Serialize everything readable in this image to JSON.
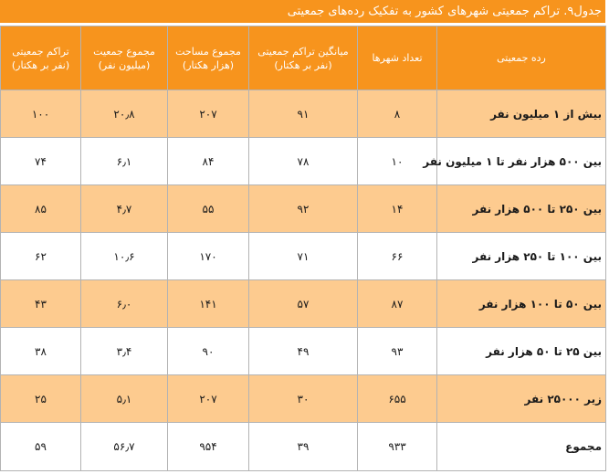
{
  "title": "جدول۹. تراکم جمعیتی شهرهای کشور به تفکیک رده‌های جمعیتی",
  "headers": {
    "category": [
      "رده جمعیتی"
    ],
    "city_count": [
      "تعداد شهرها"
    ],
    "avg_density": [
      "میانگین تراکم جمعیتی",
      "(نفر بر هکتار)"
    ],
    "total_area": [
      "مجموع مساحت",
      "(هزار هکتار)"
    ],
    "total_population": [
      "مجموع جمعیت",
      "(میلیون نفر)"
    ],
    "density": [
      "تراکم جمعیتی",
      "(نفر بر هکتار)"
    ]
  },
  "rows": [
    {
      "category": "بیش از ۱ میلیون نفر",
      "city_count": "۸",
      "avg_density": "۹۱",
      "total_area": "۲۰۷",
      "total_population": "۲۰٫۸",
      "density": "۱۰۰"
    },
    {
      "category": "بین ۵۰۰ هزار نفر تا ۱ میلیون نفر",
      "city_count": "۱۰",
      "avg_density": "۷۸",
      "total_area": "۸۴",
      "total_population": "۶٫۱",
      "density": "۷۴"
    },
    {
      "category": "بین ۲۵۰ تا ۵۰۰ هزار نفر",
      "city_count": "۱۴",
      "avg_density": "۹۲",
      "total_area": "۵۵",
      "total_population": "۴٫۷",
      "density": "۸۵"
    },
    {
      "category": "بین ۱۰۰ تا ۲۵۰ هزار نفر",
      "city_count": "۶۶",
      "avg_density": "۷۱",
      "total_area": "۱۷۰",
      "total_population": "۱۰٫۶",
      "density": "۶۲"
    },
    {
      "category": "بین ۵۰ تا ۱۰۰ هزار نفر",
      "city_count": "۸۷",
      "avg_density": "۵۷",
      "total_area": "۱۴۱",
      "total_population": "۶٫۰",
      "density": "۴۳"
    },
    {
      "category": "بین ۲۵ تا ۵۰ هزار نفر",
      "city_count": "۹۳",
      "avg_density": "۴۹",
      "total_area": "۹۰",
      "total_population": "۳٫۴",
      "density": "۳۸"
    },
    {
      "category": "زیر ۲۵۰۰۰ نفر",
      "city_count": "۶۵۵",
      "avg_density": "۳۰",
      "total_area": "۲۰۷",
      "total_population": "۵٫۱",
      "density": "۲۵"
    },
    {
      "category": "مجموع",
      "city_count": "۹۳۳",
      "avg_density": "۳۹",
      "total_area": "۹۵۴",
      "total_population": "۵۶٫۷",
      "density": "۵۹"
    }
  ],
  "colors": {
    "accent": "#f7941d",
    "row_band": "#fdcb8f",
    "border": "#b3b3b3"
  }
}
